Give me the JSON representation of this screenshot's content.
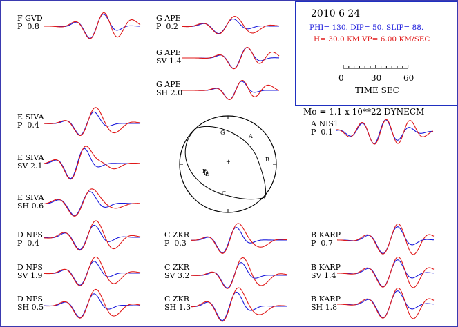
{
  "header": {
    "date": "2010  6 24",
    "mechanism": "PHI= 130. DIP= 50. SLIP=  88.",
    "depth_velocity": "H= 30.0 KM  VP= 6.00 KM/SEC",
    "time_scale": {
      "tick0": "0",
      "tick30": "30",
      "tick60": "60",
      "label": "TIME  SEC"
    },
    "moment": "Mo =  1.1 x 10**22 DYNECM"
  },
  "colors": {
    "observed": "#1a1adc",
    "synthetic": "#e01818",
    "frame": "#2030c0"
  },
  "beachball": {
    "station_labels": [
      "G",
      "A",
      "B",
      "D",
      "C",
      "F",
      "E"
    ],
    "center_mark": "+"
  },
  "traces": [
    {
      "station": "F GVD",
      "phase": "P",
      "amp": "0.8"
    },
    {
      "station": "G APE",
      "phase": "P",
      "amp": "0.2"
    },
    {
      "station": "G APE",
      "phase": "SV",
      "amp": "1.4"
    },
    {
      "station": "G APE",
      "phase": "SH",
      "amp": "2.0"
    },
    {
      "station": "E SIVA",
      "phase": "P",
      "amp": "0.4"
    },
    {
      "station": "E SIVA",
      "phase": "SV",
      "amp": "2.1"
    },
    {
      "station": "E SIVA",
      "phase": "SH",
      "amp": "0.6"
    },
    {
      "station": "A NIS1",
      "phase": "P",
      "amp": "0.1"
    },
    {
      "station": "D NPS",
      "phase": "P",
      "amp": "0.4"
    },
    {
      "station": "D NPS",
      "phase": "SV",
      "amp": "1.9"
    },
    {
      "station": "D NPS",
      "phase": "SH",
      "amp": "0.5"
    },
    {
      "station": "C ZKR",
      "phase": "P",
      "amp": "0.3"
    },
    {
      "station": "C ZKR",
      "phase": "SV",
      "amp": "3.2"
    },
    {
      "station": "C ZKR",
      "phase": "SH",
      "amp": "1.3"
    },
    {
      "station": "B KARP",
      "phase": "P",
      "amp": "0.7"
    },
    {
      "station": "B KARP",
      "phase": "SV",
      "amp": "1.4"
    },
    {
      "station": "B KARP",
      "phase": "SH",
      "amp": "1.8"
    }
  ]
}
